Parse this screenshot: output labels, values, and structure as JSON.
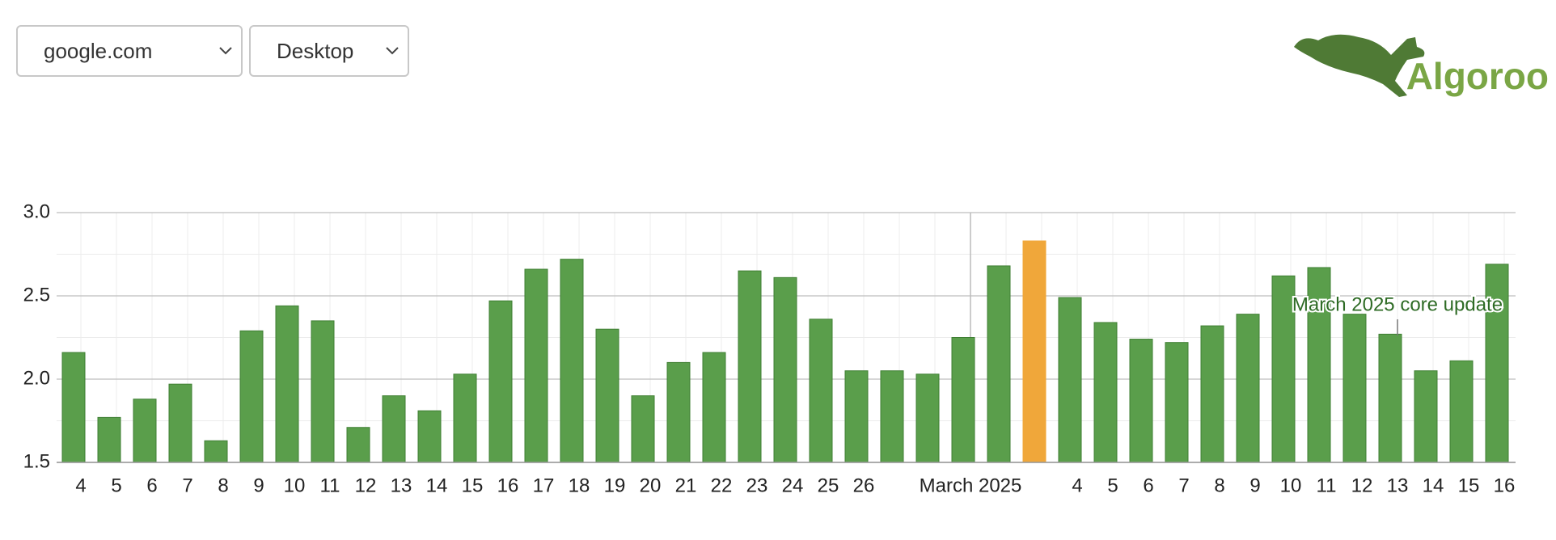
{
  "controls": {
    "site": "google.com",
    "device": "Desktop"
  },
  "logo": {
    "text": "Algoroo"
  },
  "chart_data": {
    "type": "bar",
    "categories": [
      "4",
      "5",
      "6",
      "7",
      "8",
      "9",
      "10",
      "11",
      "12",
      "13",
      "14",
      "15",
      "16",
      "17",
      "18",
      "19",
      "20",
      "21",
      "22",
      "23",
      "24",
      "25",
      "26",
      null,
      null,
      "March 2025",
      null,
      null,
      "4",
      "5",
      "6",
      "7",
      "8",
      "9",
      "10",
      "11",
      "12",
      "13",
      "14",
      "15",
      "16"
    ],
    "values": [
      2.16,
      1.77,
      1.88,
      1.97,
      1.63,
      2.29,
      2.44,
      2.35,
      1.71,
      1.9,
      1.81,
      2.03,
      2.47,
      2.66,
      2.72,
      2.3,
      1.9,
      2.1,
      2.16,
      2.65,
      2.61,
      2.36,
      2.05,
      2.05,
      2.03,
      2.25,
      2.68,
      2.83,
      2.49,
      2.34,
      2.24,
      2.22,
      2.32,
      2.39,
      2.62,
      2.67,
      2.39,
      2.27,
      2.05,
      2.11,
      2.69
    ],
    "color": "#5a9e4b",
    "highlight": {
      "index": 27,
      "color": "#f0a73a"
    },
    "ylim": [
      1.5,
      3.0
    ],
    "yticks": [
      {
        "value": 1.5,
        "label": "1.5"
      },
      {
        "value": 2.0,
        "label": "2.0"
      },
      {
        "value": 2.5,
        "label": "2.5"
      },
      {
        "value": 3.0,
        "label": "3.0"
      }
    ],
    "grid": true,
    "annotations": [
      {
        "text": "March 2025 core update",
        "index": 37
      }
    ]
  }
}
